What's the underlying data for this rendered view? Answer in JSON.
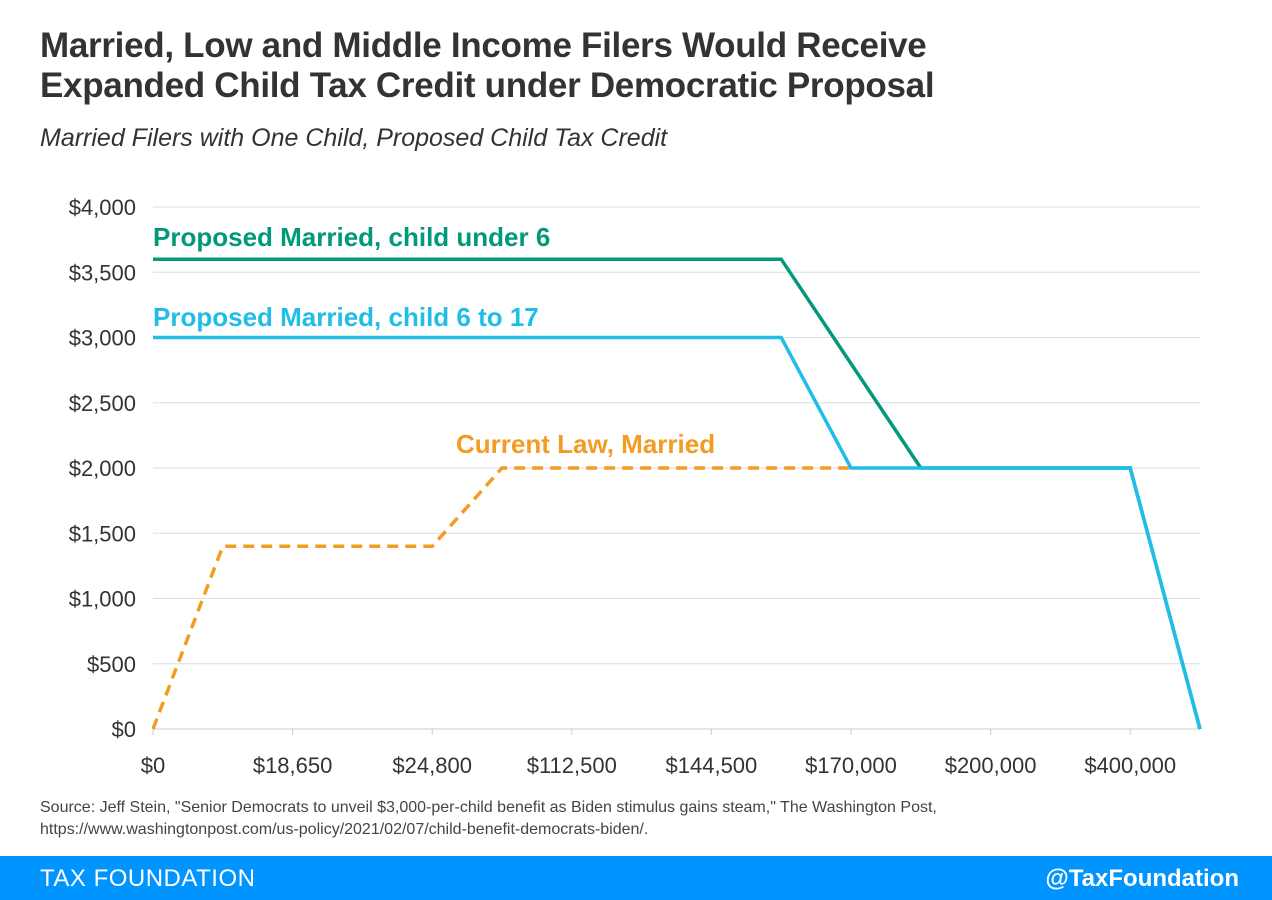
{
  "header": {
    "title_line1": "Married, Low and Middle Income Filers Would Receive",
    "title_line2": "Expanded Child Tax Credit under Democratic Proposal",
    "subtitle": "Married Filers with One Child, Proposed Child Tax Credit"
  },
  "chart_data": {
    "type": "line",
    "title": "Married, Low and Middle Income Filers Would Receive Expanded Child Tax Credit under Democratic Proposal",
    "subtitle": "Married Filers with One Child, Proposed Child Tax Credit",
    "categories": [
      "$0",
      "$18,650",
      "$24,800",
      "$112,500",
      "$144,500",
      "$170,000",
      "$200,000",
      "$400,000"
    ],
    "ylim": [
      0,
      4000
    ],
    "yticks": [
      0,
      500,
      1000,
      1500,
      2000,
      2500,
      3000,
      3500,
      4000
    ],
    "ytick_labels": [
      "$0",
      "$500",
      "$1,000",
      "$1,500",
      "$2,000",
      "$2,500",
      "$3,000",
      "$3,500",
      "$4,000"
    ],
    "grid": true,
    "legend": "inline labels",
    "series": [
      {
        "name": "Proposed Married, child under 6",
        "color": "#00997a",
        "style": "solid",
        "points": [
          [
            0,
            3600
          ],
          [
            4.5,
            3600
          ],
          [
            5.5,
            2000
          ],
          [
            7,
            2000
          ],
          [
            7.5,
            0
          ]
        ]
      },
      {
        "name": "Proposed Married, child 6 to 17",
        "color": "#1fbde8",
        "style": "solid",
        "points": [
          [
            0,
            3000
          ],
          [
            4.5,
            3000
          ],
          [
            5,
            2000
          ],
          [
            7,
            2000
          ],
          [
            7.5,
            0
          ]
        ]
      },
      {
        "name": "Current Law, Married",
        "color": "#f39c24",
        "style": "dashed",
        "points": [
          [
            0,
            0
          ],
          [
            0.5,
            1400
          ],
          [
            2,
            1400
          ],
          [
            2.5,
            2000
          ],
          [
            5,
            2000
          ]
        ]
      }
    ]
  },
  "source": {
    "line1": "Source: Jeff Stein, \"Senior Democrats to unveil $3,000-per-child benefit as Biden stimulus gains steam,\" The Washington Post,",
    "line2": "https://www.washingtonpost.com/us-policy/2021/02/07/child-benefit-democrats-biden/."
  },
  "footer": {
    "brand": "TAX FOUNDATION",
    "handle": "@TaxFoundation",
    "color": "#0094ff"
  }
}
